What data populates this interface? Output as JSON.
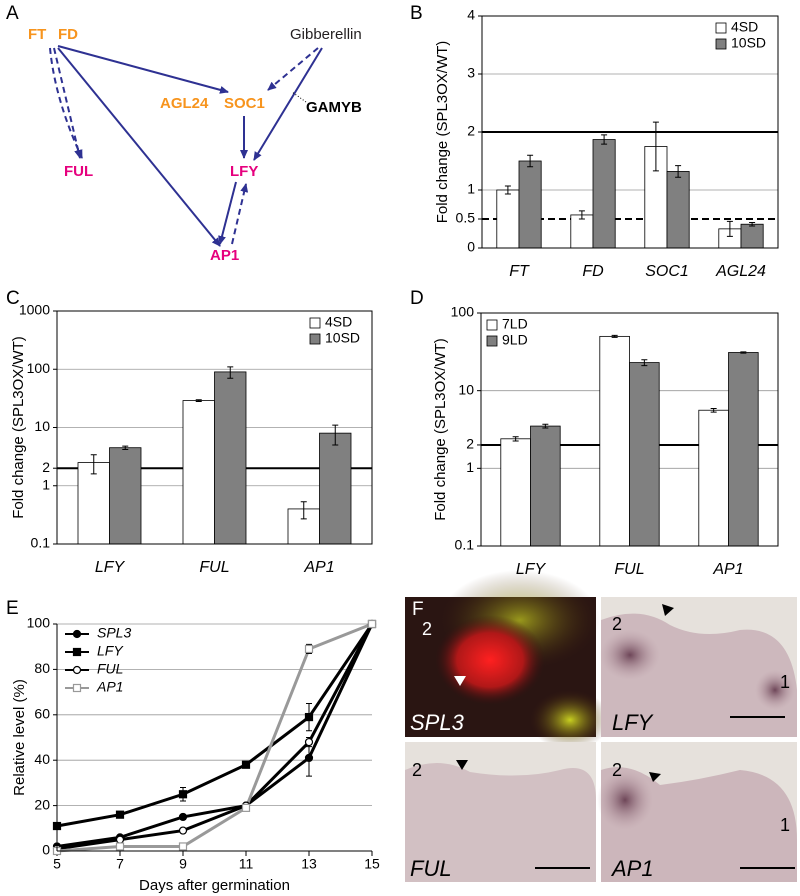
{
  "diagram": {
    "label": "A",
    "nodes": [
      {
        "label": "FT",
        "color": "#f7941d"
      },
      {
        "label": "FD",
        "color": "#f7941d"
      },
      {
        "label": "Gibberellin",
        "color": "#231f20"
      },
      {
        "label": "AGL24",
        "color": "#f7941d"
      },
      {
        "label": "SOC1",
        "color": "#f7941d"
      },
      {
        "label": "GAMYB",
        "color": "#000000"
      },
      {
        "label": "FUL",
        "color": "#e6007e"
      },
      {
        "label": "LFY",
        "color": "#e6007e"
      },
      {
        "label": "AP1",
        "color": "#e6007e"
      }
    ]
  },
  "chart_data": [
    {
      "type": "bar",
      "label": "B",
      "ylabel": "Fold change (SPL3OX/WT)",
      "categories": [
        "FT",
        "FD",
        "SOC1",
        "AGL24"
      ],
      "series": [
        {
          "name": "4SD",
          "color": "#ffffff",
          "values": [
            1.0,
            0.57,
            1.75,
            0.33
          ],
          "errors": [
            0.07,
            0.07,
            0.42,
            0.13
          ]
        },
        {
          "name": "10SD",
          "color": "#808080",
          "values": [
            1.5,
            1.87,
            1.32,
            0.41
          ],
          "errors": [
            0.1,
            0.08,
            0.1,
            0.03
          ]
        }
      ],
      "ylim": [
        0,
        4
      ],
      "yticks": [
        0,
        0.5,
        1,
        2,
        3,
        4
      ],
      "grid": true,
      "legend": "upper right",
      "hlines": [
        {
          "value": 2,
          "style": "solid"
        },
        {
          "value": 0.5,
          "style": "dashed"
        }
      ]
    },
    {
      "type": "bar",
      "label": "C",
      "ylabel": "Fold change (SPL3OX/WT)",
      "yscale": "log",
      "categories": [
        "LFY",
        "FUL",
        "AP1"
      ],
      "series": [
        {
          "name": "4SD",
          "color": "#ffffff",
          "values": [
            2.5,
            29,
            0.4
          ],
          "errors": [
            0.9,
            1,
            0.13
          ]
        },
        {
          "name": "10SD",
          "color": "#808080",
          "values": [
            4.5,
            90,
            8
          ],
          "errors": [
            0.3,
            20,
            3
          ]
        }
      ],
      "ylim": [
        0.1,
        1000
      ],
      "yticks": [
        0.1,
        1,
        2,
        10,
        100,
        1000
      ],
      "grid": true,
      "legend": "upper right",
      "hlines": [
        {
          "value": 2,
          "style": "solid"
        }
      ]
    },
    {
      "type": "bar",
      "label": "D",
      "ylabel": "Fold change (SPL3OX/WT)",
      "yscale": "log",
      "categories": [
        "LFY",
        "FUL",
        "AP1"
      ],
      "series": [
        {
          "name": "7LD",
          "color": "#ffffff",
          "values": [
            2.4,
            50,
            5.6
          ],
          "errors": [
            0.15,
            1.5,
            0.3
          ]
        },
        {
          "name": "9LD",
          "color": "#808080",
          "values": [
            3.5,
            23,
            31
          ],
          "errors": [
            0.2,
            2,
            0.6
          ]
        }
      ],
      "ylim": [
        0.1,
        100
      ],
      "yticks": [
        0.1,
        1,
        2,
        10,
        100
      ],
      "grid": true,
      "legend": "upper left",
      "hlines": [
        {
          "value": 2,
          "style": "solid"
        }
      ]
    },
    {
      "type": "line",
      "label": "E",
      "xlabel": "Days after germination",
      "ylabel": "Relative level (%)",
      "x": [
        5,
        7,
        9,
        11,
        13,
        15
      ],
      "series": [
        {
          "name": "SPL3",
          "color": "#000000",
          "marker": "circle",
          "marker_fill": "#000000",
          "values": [
            2,
            6,
            15,
            20,
            41,
            100
          ],
          "errors": [
            1,
            1,
            1,
            1,
            8,
            0
          ]
        },
        {
          "name": "LFY",
          "color": "#000000",
          "marker": "square",
          "marker_fill": "#000000",
          "values": [
            11,
            16,
            25,
            38,
            59,
            100
          ],
          "errors": [
            1,
            1,
            3,
            1,
            6,
            0
          ]
        },
        {
          "name": "FUL",
          "color": "#000000",
          "marker": "circle",
          "marker_fill": "#ffffff",
          "values": [
            1,
            5,
            9,
            20,
            48,
            100
          ],
          "errors": [
            1,
            1,
            1,
            1,
            2,
            0
          ]
        },
        {
          "name": "AP1",
          "color": "#999999",
          "marker": "square",
          "marker_fill": "#ffffff",
          "values": [
            0,
            2,
            2,
            19,
            89,
            100
          ],
          "errors": [
            0,
            0,
            0,
            1,
            2,
            0
          ]
        }
      ],
      "xlim": [
        5,
        15
      ],
      "xticks": [
        5,
        7,
        9,
        11,
        13,
        15
      ],
      "ylim": [
        0,
        100
      ],
      "yticks": [
        0,
        20,
        40,
        60,
        80,
        100
      ],
      "grid": true,
      "legend": "upper left"
    }
  ],
  "micrographs": {
    "label": "F",
    "images": [
      {
        "gene": "SPL3",
        "marks": [
          "2"
        ]
      },
      {
        "gene": "LFY",
        "marks": [
          "2",
          "1"
        ]
      },
      {
        "gene": "FUL",
        "marks": [
          "2"
        ]
      },
      {
        "gene": "AP1",
        "marks": [
          "2",
          "1"
        ]
      }
    ]
  }
}
